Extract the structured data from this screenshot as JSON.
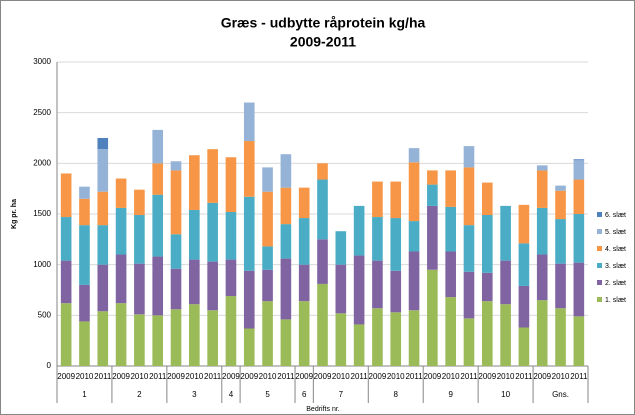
{
  "chart_data": {
    "type": "stacked_bar",
    "title": "Græs - udbytte råprotein kg/ha",
    "subtitle": "2009-2011",
    "y_label": "Kg pr. ha",
    "x_label": "Bedrifts nr.",
    "categories": [
      "2009",
      "2010",
      "2011",
      "2009",
      "2010",
      "2011",
      "2009",
      "2010",
      "2011",
      "2009",
      "2009",
      "2010",
      "2011",
      "2009",
      "2009",
      "2010",
      "2011",
      "2009",
      "2010",
      "2011",
      "2009",
      "2010",
      "2011",
      "2009",
      "2010",
      "2011",
      "2009",
      "2010",
      "2011"
    ],
    "groups": [
      {
        "label": "1",
        "span": 3
      },
      {
        "label": "2",
        "span": 3
      },
      {
        "label": "3",
        "span": 3
      },
      {
        "label": "4",
        "span": 1
      },
      {
        "label": "5",
        "span": 3
      },
      {
        "label": "6",
        "span": 1
      },
      {
        "label": "7",
        "span": 3
      },
      {
        "label": "8",
        "span": 3
      },
      {
        "label": "9",
        "span": 3
      },
      {
        "label": "10",
        "span": 3
      },
      {
        "label": "Gns.",
        "span": 3
      }
    ],
    "series": [
      {
        "name": "1. slæt",
        "color": "#9bbb59",
        "values": [
          620,
          440,
          540,
          620,
          510,
          500,
          560,
          610,
          550,
          690,
          370,
          640,
          460,
          640,
          810,
          520,
          410,
          570,
          530,
          550,
          950,
          680,
          470,
          640,
          610,
          380,
          650,
          570,
          490
        ]
      },
      {
        "name": "2. slæt",
        "color": "#8064a2",
        "values": [
          420,
          360,
          460,
          480,
          500,
          580,
          400,
          440,
          480,
          360,
          570,
          310,
          600,
          360,
          440,
          480,
          680,
          470,
          410,
          580,
          630,
          450,
          460,
          280,
          430,
          410,
          450,
          440,
          530
        ]
      },
      {
        "name": "3. slæt",
        "color": "#4bacc6",
        "values": [
          430,
          590,
          390,
          460,
          480,
          610,
          340,
          490,
          580,
          470,
          730,
          230,
          340,
          460,
          590,
          330,
          490,
          430,
          520,
          300,
          210,
          440,
          460,
          570,
          540,
          420,
          460,
          440,
          480
        ]
      },
      {
        "name": "4. slæt",
        "color": "#f79646",
        "values": [
          430,
          260,
          330,
          290,
          250,
          310,
          630,
          540,
          530,
          540,
          550,
          540,
          360,
          300,
          160,
          null,
          null,
          350,
          360,
          580,
          140,
          360,
          570,
          320,
          null,
          380,
          370,
          280,
          340
        ]
      },
      {
        "name": "5. slæt",
        "color": "#95b3d7",
        "values": [
          null,
          120,
          420,
          null,
          null,
          330,
          90,
          null,
          null,
          null,
          380,
          240,
          330,
          null,
          null,
          null,
          null,
          null,
          null,
          140,
          null,
          null,
          210,
          null,
          null,
          null,
          50,
          50,
          190
        ]
      },
      {
        "name": "6. slæt",
        "color": "#4f81bd",
        "values": [
          null,
          null,
          110,
          null,
          null,
          null,
          null,
          null,
          null,
          null,
          null,
          null,
          null,
          null,
          null,
          null,
          null,
          null,
          null,
          null,
          null,
          null,
          null,
          null,
          null,
          null,
          null,
          null,
          10
        ]
      }
    ],
    "ylim": [
      0,
      3000
    ],
    "yticks": [
      0,
      500,
      1000,
      1500,
      2000,
      2500,
      3000
    ],
    "grid": true,
    "legend": "right"
  }
}
